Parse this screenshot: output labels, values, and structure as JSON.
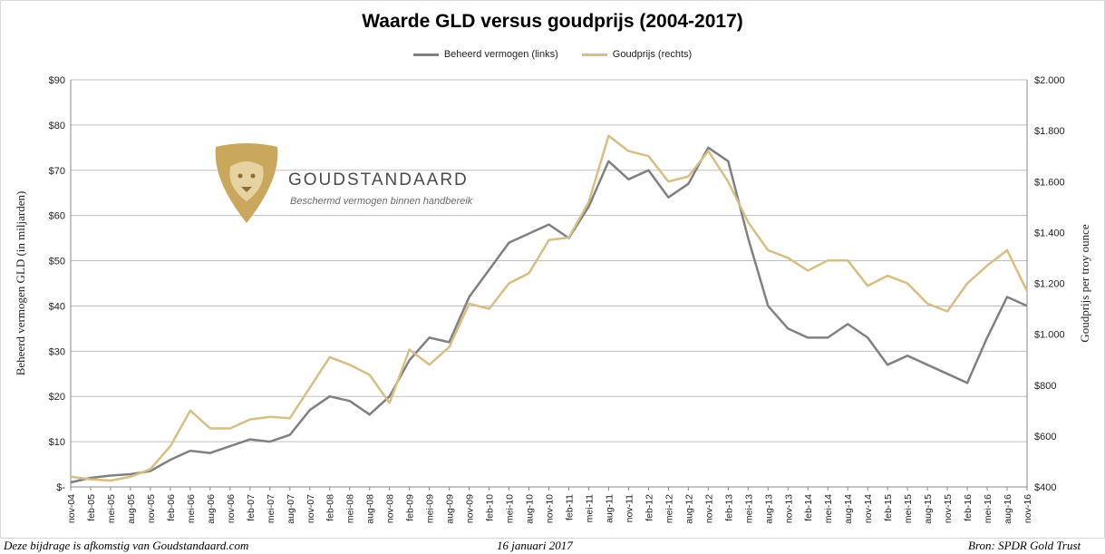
{
  "page": {
    "footer_left": "Deze bijdrage is afkomstig van Goudstandaard.com",
    "footer_center": "16 januari 2017",
    "footer_right": "Bron: SPDR Gold Trust"
  },
  "watermark": {
    "brand": "GOUDSTANDAARD",
    "tagline": "Beschermd vermogen binnen handbereik"
  },
  "colors": {
    "aum": "#808080",
    "gold": "#d6be84",
    "grid": "#bfbfbf",
    "logo": "#c9a85e"
  },
  "chart_data": {
    "type": "line",
    "title": "Waarde GLD versus goudprijs (2004-2017)",
    "ylabel": "Beheerd vermogen GLD (in miljarden)",
    "y2label": "Goudprijs per troy ounce",
    "ylim": [
      0,
      90
    ],
    "y2lim": [
      400,
      2000
    ],
    "yticks": [
      "$-",
      "$10",
      "$20",
      "$30",
      "$40",
      "$50",
      "$60",
      "$70",
      "$80",
      "$90"
    ],
    "y2ticks": [
      "$400",
      "$600",
      "$800",
      "$1.000",
      "$1.200",
      "$1.400",
      "$1.600",
      "$1.800",
      "$2.000"
    ],
    "categories": [
      "nov-04",
      "feb-05",
      "mei-05",
      "aug-05",
      "nov-05",
      "feb-06",
      "mei-06",
      "aug-06",
      "nov-06",
      "feb-07",
      "mei-07",
      "aug-07",
      "nov-07",
      "feb-08",
      "mei-08",
      "aug-08",
      "nov-08",
      "feb-09",
      "mei-09",
      "aug-09",
      "nov-09",
      "feb-10",
      "mei-10",
      "aug-10",
      "nov-10",
      "feb-11",
      "mei-11",
      "aug-11",
      "nov-11",
      "feb-12",
      "mei-12",
      "aug-12",
      "nov-12",
      "feb-13",
      "mei-13",
      "aug-13",
      "nov-13",
      "feb-14",
      "mei-14",
      "aug-14",
      "nov-14",
      "feb-15",
      "mei-15",
      "aug-15",
      "nov-15",
      "feb-16",
      "mei-16",
      "aug-16",
      "nov-16"
    ],
    "grid": true,
    "legend_position": "top-center",
    "series": [
      {
        "name": "Beheerd vermogen (links)",
        "axis": "left",
        "values": [
          1,
          2,
          2.5,
          2.8,
          3.5,
          6,
          8,
          7.5,
          9,
          10.5,
          10,
          11.5,
          17,
          20,
          19,
          16,
          20,
          28,
          33,
          32,
          42,
          48,
          54,
          56,
          58,
          55,
          62,
          72,
          68,
          70,
          64,
          67,
          75,
          72,
          55,
          40,
          35,
          33,
          33,
          36,
          33,
          27,
          29,
          27,
          25,
          23,
          33,
          42,
          40
        ]
      },
      {
        "name": "Goudprijs (rechts)",
        "axis": "right",
        "values": [
          440,
          430,
          425,
          440,
          470,
          560,
          700,
          630,
          630,
          665,
          675,
          670,
          790,
          910,
          880,
          840,
          730,
          940,
          880,
          950,
          1120,
          1100,
          1200,
          1240,
          1370,
          1380,
          1520,
          1780,
          1720,
          1700,
          1600,
          1620,
          1720,
          1600,
          1440,
          1330,
          1300,
          1250,
          1290,
          1290,
          1190,
          1230,
          1200,
          1120,
          1090,
          1200,
          1270,
          1330,
          1170
        ]
      }
    ]
  }
}
